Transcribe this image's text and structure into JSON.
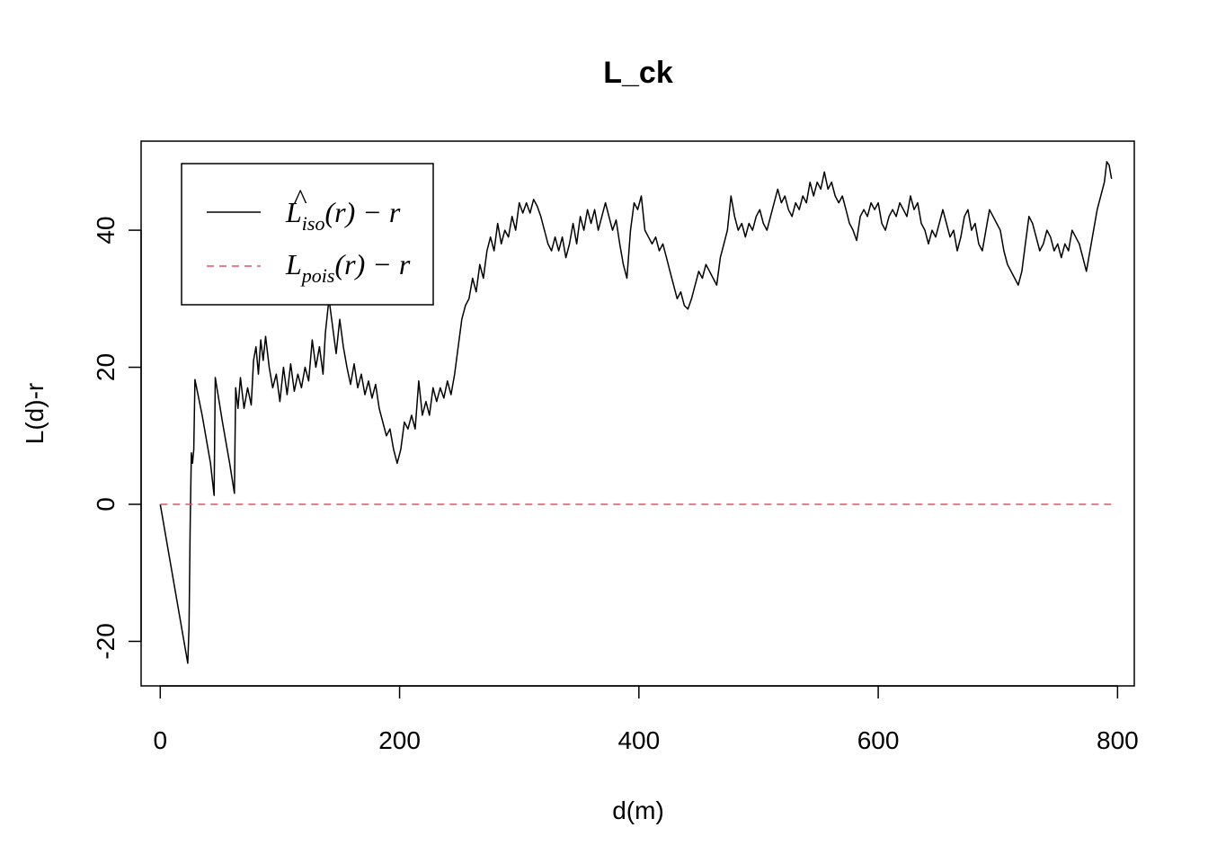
{
  "chart_data": {
    "type": "line",
    "title": "L_ck",
    "xlabel": "d(m)",
    "ylabel": "L(d)-r",
    "xlim": [
      -16,
      814
    ],
    "ylim": [
      -26.5,
      53
    ],
    "x_ticks": [
      0,
      200,
      400,
      600,
      800
    ],
    "y_ticks": [
      -20,
      0,
      20,
      40
    ],
    "grid": false,
    "legend_position": "top-left",
    "series": [
      {
        "name": "L̂iso(r) − r",
        "legend": {
          "main": "L",
          "sub": "iso",
          "rest": "(r) − r",
          "hat": "^"
        },
        "color": "#000000",
        "dash": "solid",
        "points": [
          [
            0,
            0
          ],
          [
            23,
            -23.2
          ],
          [
            24,
            -18
          ],
          [
            25,
            -3
          ],
          [
            26,
            7.5
          ],
          [
            27,
            6
          ],
          [
            28,
            8
          ],
          [
            29,
            18.2
          ],
          [
            35,
            13
          ],
          [
            42,
            6
          ],
          [
            45,
            1.3
          ],
          [
            46,
            18.5
          ],
          [
            52,
            12
          ],
          [
            58,
            6
          ],
          [
            62,
            1.6
          ],
          [
            63,
            17
          ],
          [
            65,
            14
          ],
          [
            67,
            18.5
          ],
          [
            70,
            14
          ],
          [
            73,
            17
          ],
          [
            76,
            14.5
          ],
          [
            78,
            21
          ],
          [
            80,
            23
          ],
          [
            82,
            19
          ],
          [
            84,
            24
          ],
          [
            86,
            21
          ],
          [
            88,
            24.5
          ],
          [
            91,
            20
          ],
          [
            94,
            17
          ],
          [
            97,
            19
          ],
          [
            100,
            15
          ],
          [
            103,
            20
          ],
          [
            106,
            16
          ],
          [
            109,
            20.5
          ],
          [
            112,
            16.5
          ],
          [
            115,
            19
          ],
          [
            118,
            17
          ],
          [
            121,
            20
          ],
          [
            124,
            18
          ],
          [
            127,
            24
          ],
          [
            130,
            20
          ],
          [
            133,
            23
          ],
          [
            136,
            19
          ],
          [
            138,
            25
          ],
          [
            141,
            30
          ],
          [
            144,
            26
          ],
          [
            147,
            22
          ],
          [
            150,
            27
          ],
          [
            153,
            23
          ],
          [
            156,
            20
          ],
          [
            159,
            17.5
          ],
          [
            162,
            20.5
          ],
          [
            165,
            17
          ],
          [
            168,
            19
          ],
          [
            171,
            16
          ],
          [
            174,
            18
          ],
          [
            177,
            15.5
          ],
          [
            180,
            17.5
          ],
          [
            183,
            14
          ],
          [
            186,
            12
          ],
          [
            189,
            10
          ],
          [
            192,
            11
          ],
          [
            195,
            8
          ],
          [
            198,
            6
          ],
          [
            201,
            8
          ],
          [
            204,
            12
          ],
          [
            207,
            11
          ],
          [
            210,
            13
          ],
          [
            213,
            11
          ],
          [
            216,
            18
          ],
          [
            219,
            13
          ],
          [
            222,
            15
          ],
          [
            225,
            13
          ],
          [
            228,
            17
          ],
          [
            231,
            15
          ],
          [
            234,
            17
          ],
          [
            237,
            15.5
          ],
          [
            240,
            18
          ],
          [
            243,
            16
          ],
          [
            246,
            19
          ],
          [
            249,
            23
          ],
          [
            252,
            27
          ],
          [
            255,
            29
          ],
          [
            258,
            30
          ],
          [
            261,
            33
          ],
          [
            264,
            31
          ],
          [
            267,
            35
          ],
          [
            270,
            33
          ],
          [
            273,
            37
          ],
          [
            276,
            39
          ],
          [
            279,
            37
          ],
          [
            282,
            41
          ],
          [
            285,
            38
          ],
          [
            288,
            40
          ],
          [
            291,
            39
          ],
          [
            294,
            42
          ],
          [
            297,
            40
          ],
          [
            300,
            44
          ],
          [
            303,
            42.5
          ],
          [
            306,
            44
          ],
          [
            309,
            42.5
          ],
          [
            312,
            44.5
          ],
          [
            315,
            43.5
          ],
          [
            318,
            42
          ],
          [
            321,
            40
          ],
          [
            324,
            38
          ],
          [
            327,
            37
          ],
          [
            330,
            39
          ],
          [
            333,
            37
          ],
          [
            336,
            39
          ],
          [
            339,
            36
          ],
          [
            342,
            38
          ],
          [
            345,
            41
          ],
          [
            348,
            38
          ],
          [
            351,
            42
          ],
          [
            354,
            40
          ],
          [
            357,
            43
          ],
          [
            360,
            41
          ],
          [
            363,
            43
          ],
          [
            366,
            40
          ],
          [
            369,
            42
          ],
          [
            372,
            44
          ],
          [
            375,
            42
          ],
          [
            378,
            40
          ],
          [
            381,
            41.5
          ],
          [
            384,
            38
          ],
          [
            387,
            35
          ],
          [
            390,
            33
          ],
          [
            393,
            40
          ],
          [
            396,
            44
          ],
          [
            399,
            43
          ],
          [
            402,
            45
          ],
          [
            405,
            40
          ],
          [
            408,
            39
          ],
          [
            411,
            38
          ],
          [
            414,
            39
          ],
          [
            417,
            37
          ],
          [
            420,
            38
          ],
          [
            423,
            36
          ],
          [
            426,
            34
          ],
          [
            429,
            32
          ],
          [
            432,
            30
          ],
          [
            435,
            31
          ],
          [
            438,
            29
          ],
          [
            441,
            28.5
          ],
          [
            444,
            30
          ],
          [
            447,
            32
          ],
          [
            450,
            34
          ],
          [
            453,
            33
          ],
          [
            456,
            35
          ],
          [
            459,
            34
          ],
          [
            462,
            33
          ],
          [
            465,
            32
          ],
          [
            468,
            36
          ],
          [
            471,
            38
          ],
          [
            474,
            40
          ],
          [
            477,
            45
          ],
          [
            480,
            42
          ],
          [
            483,
            40
          ],
          [
            486,
            41
          ],
          [
            489,
            39
          ],
          [
            492,
            41
          ],
          [
            495,
            40
          ],
          [
            498,
            42
          ],
          [
            501,
            43
          ],
          [
            504,
            41
          ],
          [
            507,
            40
          ],
          [
            510,
            42
          ],
          [
            513,
            44
          ],
          [
            516,
            46
          ],
          [
            519,
            44
          ],
          [
            522,
            45
          ],
          [
            525,
            43
          ],
          [
            528,
            42
          ],
          [
            531,
            44
          ],
          [
            534,
            43
          ],
          [
            537,
            45
          ],
          [
            540,
            44
          ],
          [
            543,
            47
          ],
          [
            546,
            45
          ],
          [
            549,
            47
          ],
          [
            552,
            46
          ],
          [
            555,
            48.5
          ],
          [
            558,
            46
          ],
          [
            561,
            47
          ],
          [
            564,
            45
          ],
          [
            567,
            44
          ],
          [
            570,
            45
          ],
          [
            573,
            43
          ],
          [
            576,
            41
          ],
          [
            579,
            40
          ],
          [
            582,
            38.5
          ],
          [
            585,
            42
          ],
          [
            588,
            43
          ],
          [
            591,
            42
          ],
          [
            594,
            44
          ],
          [
            597,
            43
          ],
          [
            600,
            44
          ],
          [
            603,
            41
          ],
          [
            606,
            40
          ],
          [
            609,
            42
          ],
          [
            612,
            43
          ],
          [
            615,
            42
          ],
          [
            618,
            44
          ],
          [
            621,
            43
          ],
          [
            624,
            42
          ],
          [
            627,
            45
          ],
          [
            630,
            43
          ],
          [
            633,
            44
          ],
          [
            636,
            41
          ],
          [
            639,
            40
          ],
          [
            642,
            38
          ],
          [
            645,
            40
          ],
          [
            648,
            39
          ],
          [
            651,
            41
          ],
          [
            654,
            43
          ],
          [
            657,
            41
          ],
          [
            660,
            39
          ],
          [
            663,
            40
          ],
          [
            666,
            37
          ],
          [
            669,
            39
          ],
          [
            672,
            42
          ],
          [
            675,
            43
          ],
          [
            678,
            40
          ],
          [
            681,
            41
          ],
          [
            684,
            38
          ],
          [
            687,
            37
          ],
          [
            690,
            40
          ],
          [
            693,
            43
          ],
          [
            696,
            42
          ],
          [
            699,
            41
          ],
          [
            702,
            40
          ],
          [
            705,
            37
          ],
          [
            708,
            35
          ],
          [
            711,
            34
          ],
          [
            714,
            33
          ],
          [
            717,
            32
          ],
          [
            720,
            34
          ],
          [
            723,
            38
          ],
          [
            726,
            42
          ],
          [
            729,
            41
          ],
          [
            732,
            39
          ],
          [
            735,
            37
          ],
          [
            738,
            38
          ],
          [
            741,
            40
          ],
          [
            744,
            39
          ],
          [
            747,
            37
          ],
          [
            750,
            38
          ],
          [
            753,
            36
          ],
          [
            756,
            38
          ],
          [
            759,
            37
          ],
          [
            762,
            40
          ],
          [
            765,
            39
          ],
          [
            768,
            38
          ],
          [
            771,
            36
          ],
          [
            774,
            34
          ],
          [
            777,
            37
          ],
          [
            780,
            40
          ],
          [
            783,
            43
          ],
          [
            786,
            45
          ],
          [
            789,
            47
          ],
          [
            791,
            50
          ],
          [
            793,
            49.5
          ],
          [
            795,
            47.5
          ]
        ]
      },
      {
        "name": "Lpois(r) − r",
        "legend": {
          "main": "L",
          "sub": "pois",
          "rest": "(r) − r"
        },
        "color": "#df536b",
        "dash": "dashed",
        "points": [
          [
            0,
            0
          ],
          [
            795,
            0
          ]
        ]
      }
    ]
  }
}
